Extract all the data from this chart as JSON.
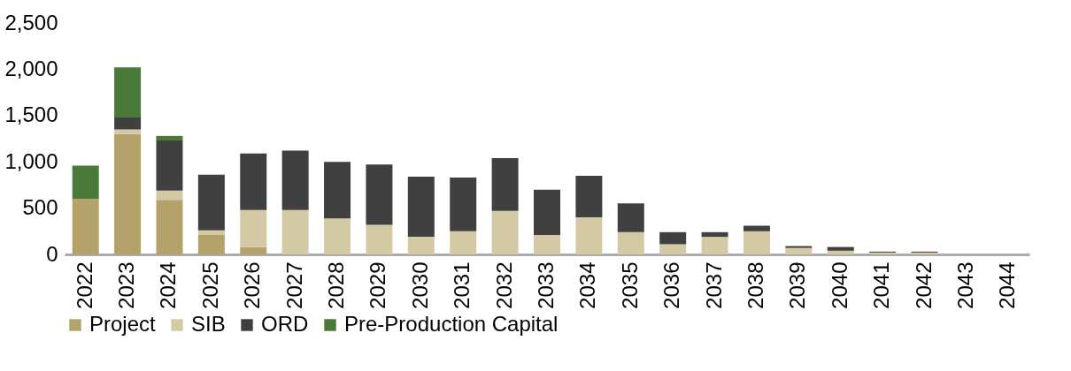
{
  "chart_data": {
    "type": "bar",
    "stacked": true,
    "legend": "bottom",
    "grid": false,
    "categories": [
      "2022",
      "2023",
      "2024",
      "2025",
      "2026",
      "2027",
      "2028",
      "2029",
      "2030",
      "2031",
      "2032",
      "2033",
      "2034",
      "2035",
      "2036",
      "2037",
      "2038",
      "2039",
      "2040",
      "2041",
      "2042",
      "2043",
      "2044"
    ],
    "ylim": [
      0,
      2500
    ],
    "yticks": [
      {
        "value": 0,
        "label": "0"
      },
      {
        "value": 500,
        "label": "500"
      },
      {
        "value": 1000,
        "label": "1,000"
      },
      {
        "value": 1500,
        "label": "1,500"
      },
      {
        "value": 2000,
        "label": "2,000"
      },
      {
        "value": 2500,
        "label": "2,500"
      }
    ],
    "series": [
      {
        "name": "Project",
        "color": "#b5a26a",
        "values": [
          600,
          1300,
          590,
          210,
          80,
          0,
          0,
          0,
          0,
          0,
          0,
          0,
          0,
          0,
          0,
          0,
          0,
          0,
          0,
          0,
          0,
          0,
          0
        ]
      },
      {
        "name": "SIB",
        "color": "#d3c9a5",
        "values": [
          0,
          50,
          100,
          50,
          400,
          480,
          390,
          320,
          190,
          250,
          470,
          210,
          400,
          240,
          110,
          190,
          250,
          70,
          40,
          20,
          20,
          0,
          0
        ]
      },
      {
        "name": "ORD",
        "color": "#404040",
        "values": [
          0,
          130,
          540,
          600,
          610,
          640,
          610,
          650,
          650,
          580,
          570,
          490,
          450,
          310,
          130,
          50,
          60,
          20,
          40,
          10,
          10,
          0,
          0
        ]
      },
      {
        "name": "Pre-Production Capital",
        "color": "#4a7a3a",
        "values": [
          360,
          540,
          50,
          0,
          0,
          0,
          0,
          0,
          0,
          0,
          0,
          0,
          0,
          0,
          0,
          0,
          0,
          0,
          0,
          0,
          0,
          0,
          0
        ]
      }
    ]
  }
}
